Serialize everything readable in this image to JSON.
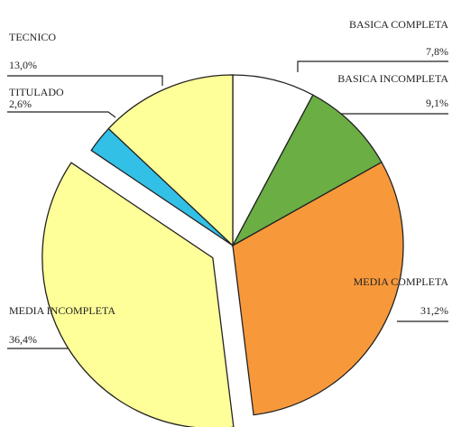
{
  "chart_data": {
    "type": "pie",
    "categories": [
      "BASICA COMPLETA",
      "BASICA INCOMPLETA",
      "MEDIA COMPLETA",
      "MEDIA INCOMPLETA",
      "TITULADO",
      "TECNICO"
    ],
    "values": [
      7.8,
      9.1,
      31.2,
      36.4,
      2.6,
      13.0
    ],
    "value_labels": [
      "7,8%",
      "9,1%",
      "31,2%",
      "36,4%",
      "2,6%",
      "13,0%"
    ],
    "colors": [
      "#ffffff",
      "#6aae44",
      "#f7993b",
      "#ffff99",
      "#33c0e6",
      "#ffff99"
    ],
    "exploded": [
      "MEDIA INCOMPLETA"
    ]
  }
}
